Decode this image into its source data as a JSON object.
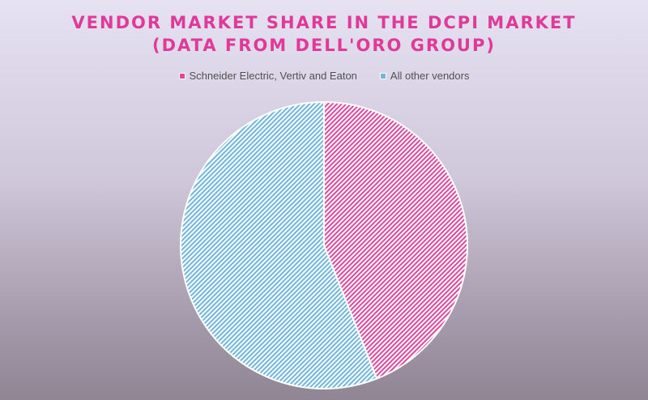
{
  "chart_data": {
    "type": "pie",
    "title": [
      "VENDOR MARKET SHARE IN THE DCPI MARKET",
      "(DATA FROM DELL'ORO GROUP)"
    ],
    "legend_placement": "top",
    "slices": [
      {
        "label": "Schneider Electric, Vertiv and Eaton",
        "value": 44,
        "color": "#e0479e"
      },
      {
        "label": "All other vendors",
        "value": 56,
        "color": "#6fb6dc"
      }
    ]
  }
}
